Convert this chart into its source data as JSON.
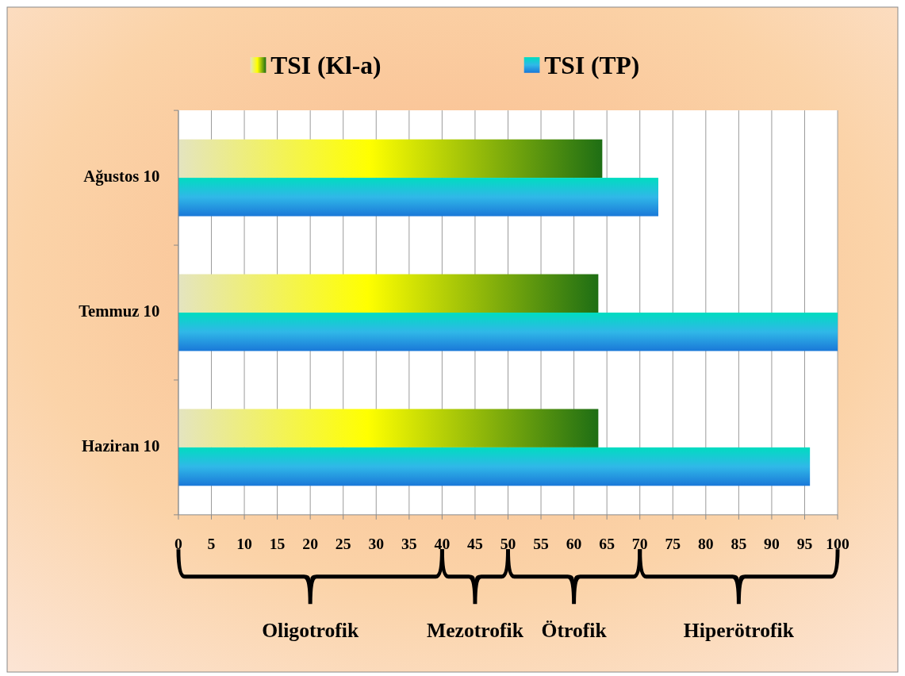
{
  "chart_data": {
    "type": "bar",
    "orientation": "horizontal",
    "categories": [
      "Ağustos 10",
      "Temmuz 10",
      "Haziran 10"
    ],
    "series": [
      {
        "name": "TSI (Kl-a)",
        "color": "#1e6e14",
        "values": [
          64.3,
          63.7,
          63.7
        ]
      },
      {
        "name": "TSI (TP)",
        "color": "#1a78d8",
        "values": [
          72.8,
          100,
          95.8
        ]
      }
    ],
    "xlim": [
      0,
      100
    ],
    "xticks": [
      0,
      5,
      10,
      15,
      20,
      25,
      30,
      35,
      40,
      45,
      50,
      55,
      60,
      65,
      70,
      75,
      80,
      85,
      90,
      95,
      100
    ],
    "grid": "x",
    "legend": "top",
    "bands": [
      {
        "axis": "x",
        "from": 0,
        "to": 40,
        "label": "Oligotrofik",
        "color": "#ffffff"
      },
      {
        "axis": "x",
        "from": 40,
        "to": 50,
        "label": "Mezotrofik",
        "color": "#ffffff"
      },
      {
        "axis": "x",
        "from": 50,
        "to": 70,
        "label": "Ötrofik",
        "color": "#ffffff"
      },
      {
        "axis": "x",
        "from": 70,
        "to": 100,
        "label": "Hiperötrofik",
        "color": "#ffffff"
      }
    ]
  }
}
